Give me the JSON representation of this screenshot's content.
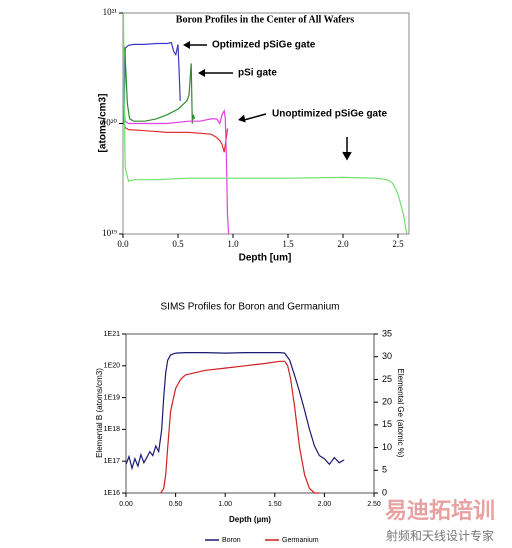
{
  "chart_data": [
    {
      "type": "line",
      "title": "Boron Profiles in the Center of All Wafers",
      "x_label": "Depth [um]",
      "y_label": "[atoms/cm3]",
      "log_y": true,
      "xlim": [
        0,
        2.6
      ],
      "ylim": [
        1e+19,
        1e+21
      ],
      "xticks": [
        {
          "value": 0,
          "label": "0.0"
        },
        0.5,
        {
          "value": 1,
          "label": "1.0"
        },
        1.5,
        {
          "value": 2,
          "label": "2.0"
        },
        2.5
      ],
      "yticks": [
        {
          "value": 1e+19,
          "label": "10¹⁹"
        },
        {
          "value": 1e+20,
          "label": "10²⁰"
        },
        {
          "value": 1e+21,
          "label": "10²¹"
        }
      ],
      "annotations": [
        "Optimized pSiGe gate",
        "pSi gate",
        "Unoptimized pSiGe gate"
      ],
      "series": [
        {
          "color": "#3a3ac8",
          "x": [
            0.01,
            0.02,
            0.05,
            0.1,
            0.2,
            0.3,
            0.4,
            0.44,
            0.46,
            0.48,
            0.5,
            0.51,
            0.52
          ],
          "values": [
            1e+20,
            4.8e+20,
            5.1e+20,
            5.2e+20,
            5.2e+20,
            5.3e+20,
            5.3e+20,
            5.4e+20,
            4.5e+20,
            4.2e+20,
            5.2e+20,
            3e+20,
            1.6e+20
          ]
        },
        {
          "color": "#2e8b2e",
          "x": [
            0.01,
            0.02,
            0.04,
            0.06,
            0.1,
            0.2,
            0.3,
            0.4,
            0.5,
            0.58,
            0.6,
            0.62,
            0.63,
            0.64,
            0.65
          ],
          "values": [
            5e+20,
            4e+20,
            1.5e+20,
            1.1e+20,
            1.05e+20,
            1.05e+20,
            1.1e+20,
            1.2e+20,
            1.35e+20,
            1.6e+20,
            1.8e+20,
            3.5e+20,
            1e+20,
            1.2e+20,
            1.1e+20
          ]
        },
        {
          "color": "#e03030",
          "x": [
            0.01,
            0.02,
            0.05,
            0.2,
            0.4,
            0.6,
            0.8,
            0.85,
            0.88,
            0.9,
            0.92,
            0.94,
            0.95
          ],
          "values": [
            1e+20,
            9.2e+19,
            8.8e+19,
            8.6e+19,
            8.3e+19,
            8.3e+19,
            8e+19,
            7.5e+19,
            7e+19,
            6.5e+19,
            5.5e+19,
            7.5e+19,
            9e+19
          ]
        },
        {
          "color": "#e040e0",
          "x": [
            0.01,
            0.02,
            0.05,
            0.2,
            0.4,
            0.6,
            0.7,
            0.8,
            0.85,
            0.88,
            0.9,
            0.92,
            0.93,
            0.94,
            0.95,
            0.96
          ],
          "values": [
            1.3e+20,
            1.05e+20,
            1e+20,
            1e+20,
            1e+20,
            1.05e+20,
            1.05e+20,
            1.1e+20,
            1.1e+20,
            1e+20,
            1.2e+20,
            1.3e+20,
            1.1e+20,
            5e+19,
            1.5e+19,
            1e+19
          ]
        },
        {
          "color": "#6ee06e",
          "x": [
            0.005,
            0.01,
            0.02,
            0.05,
            0.1,
            0.3,
            0.6,
            1,
            1.5,
            2,
            2.3,
            2.4,
            2.45,
            2.5,
            2.55,
            2.58
          ],
          "values": [
            1e+21,
            2e+20,
            4e+19,
            3e+19,
            3.1e+19,
            3.1e+19,
            3.2e+19,
            3.2e+19,
            3.2e+19,
            3.25e+19,
            3.2e+19,
            3.1e+19,
            2.9e+19,
            2.3e+19,
            1.5e+19,
            1e+19
          ]
        }
      ]
    },
    {
      "type": "line",
      "title": "SIMS Profiles for Boron and Germanium",
      "x_label": "Depth (µm)",
      "y_label": "Elemental B (atoms/cm3)",
      "y2_label": "Elemental Ge (atomic %)",
      "log_y": true,
      "xlim": [
        0,
        2.5
      ],
      "ylim": [
        1e+16,
        1e+21
      ],
      "y2lim": [
        0,
        35
      ],
      "legend": "bottom",
      "xticks": [
        {
          "value": 0,
          "label": "0.00"
        },
        {
          "value": 0.5,
          "label": "0.50"
        },
        {
          "value": 1,
          "label": "1.00"
        },
        {
          "value": 1.5,
          "label": "1.50"
        },
        {
          "value": 2,
          "label": "2.00"
        },
        {
          "value": 2.5,
          "label": "2.50"
        }
      ],
      "yticks": [
        {
          "value": 1e+16,
          "label": "1E16"
        },
        {
          "value": 1e+17,
          "label": "1E17"
        },
        {
          "value": 1e+18,
          "label": "1E18"
        },
        {
          "value": 1e+19,
          "label": "1E19"
        },
        {
          "value": 1e+20,
          "label": "1E20"
        },
        {
          "value": 1e+21,
          "label": "1E21"
        }
      ],
      "y2ticks": [
        0,
        5,
        10,
        15,
        20,
        25,
        30,
        35
      ],
      "series": [
        {
          "name": "Boron",
          "color": "#1a1a70",
          "x": [
            0,
            0.03,
            0.06,
            0.09,
            0.12,
            0.15,
            0.18,
            0.21,
            0.24,
            0.27,
            0.3,
            0.33,
            0.36,
            0.38,
            0.4,
            0.42,
            0.45,
            0.5,
            0.6,
            0.8,
            1,
            1.2,
            1.4,
            1.55,
            1.6,
            1.65,
            1.7,
            1.75,
            1.8,
            1.85,
            1.9,
            1.95,
            2,
            2.05,
            2.1,
            2.15,
            2.2
          ],
          "values": [
            8e+16,
            1.4e+17,
            6e+16,
            1.2e+17,
            7e+16,
            1.6e+17,
            9e+16,
            1.3e+17,
            2e+17,
            1.5e+17,
            3e+17,
            2e+17,
            1e+18,
            1e+19,
            6e+19,
            1.5e+20,
            2.2e+20,
            2.5e+20,
            2.6e+20,
            2.6e+20,
            2.5e+20,
            2.6e+20,
            2.6e+20,
            2.6e+20,
            2.5e+20,
            1.5e+20,
            5e+19,
            1.5e+19,
            4e+18,
            1e+18,
            3e+17,
            1.5e+17,
            1.2e+17,
            8e+16,
            1.3e+17,
            9e+16,
            1.1e+17
          ]
        },
        {
          "name": "Germanium",
          "color": "#d02020",
          "axis": "y2",
          "x": [
            0.35,
            0.38,
            0.4,
            0.42,
            0.45,
            0.5,
            0.55,
            0.6,
            0.8,
            1,
            1.2,
            1.4,
            1.55,
            1.6,
            1.63,
            1.66,
            1.7,
            1.75,
            1.8,
            1.85,
            1.9,
            1.95
          ],
          "values": [
            0,
            1,
            4,
            10,
            18,
            23,
            25,
            26,
            27,
            27.5,
            28,
            28.5,
            29,
            29,
            28,
            25,
            19,
            10,
            4,
            1,
            0,
            0
          ]
        }
      ]
    }
  ],
  "watermark": {
    "title": "易迪拓培训",
    "subtitle": "射频和天线设计专家"
  }
}
